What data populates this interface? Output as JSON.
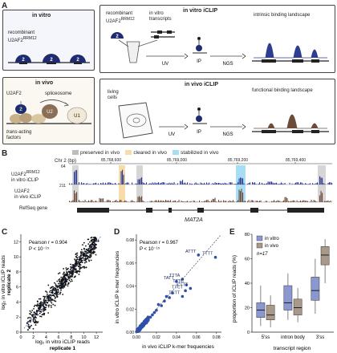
{
  "panel_a": {
    "letter": "A",
    "in_vitro_box_title": "in vitro",
    "recombinant_label_line1": "recombinant",
    "recombinant_label_line2": "U2AF2",
    "rrm_superscript": "RRM12",
    "in_vivo_box_title": "in vivo",
    "u2af2_label": "U2AF2",
    "spliceosome_label": "spliceosome",
    "trans_label": "trans",
    "acting_label": "-acting",
    "factors_label": "factors",
    "u2_label": "U2",
    "u1_label": "U1",
    "protein_number": "2",
    "in_vitro_iclip_title": "in vitro iCLIP",
    "recombinant_top_line1": "recombinant",
    "recombinant_top_line2": "U2AF2",
    "in_vitro_transcripts_line1": "in vitro",
    "in_vitro_transcripts_line2": "transcripts",
    "uv_label": "UV",
    "ip_label": "IP",
    "ngs_label": "NGS",
    "intrinsic_line1": "intrinsic binding landscape",
    "in_vivo_iclip_title": "in vivo iCLIP",
    "living_cells_line1": "living",
    "living_cells_line2": "cells",
    "functional_label": "functional binding landscape"
  },
  "panel_b": {
    "letter": "B",
    "legend": [
      {
        "label": "preserved in vivo",
        "color": "#bdbdbd"
      },
      {
        "label": "cleared in vivo",
        "color": "#f6dcaa"
      },
      {
        "label": "stabilized in vivo",
        "color": "#a8def5"
      }
    ],
    "chr_label": "Chr 2 (bp)",
    "coords": [
      "85,768,600",
      "85,769,000",
      "85,769,200",
      "85,769,400"
    ],
    "track1_label_line1": "U2AF2",
    "track1_sup": "RRM12",
    "track1_label_line2": "in vitro iCLIP",
    "track1_max": "64",
    "track2_label_line1": "U2AF2",
    "track2_label_line2": "in vivo iCLIP",
    "track2_max": "211",
    "refseq_label": "RefSeq gene",
    "gene_name": "MAT2A",
    "colors": {
      "in_vitro": "#2e3d8f",
      "in_vivo": "#6b4c3b"
    }
  },
  "panel_c": {
    "letter": "C",
    "pearson": "Pearson r = 0.904",
    "pvalue": "P < 10⁻¹⁵",
    "xlabel_line1": "log₂ in vitro iCLIP reads",
    "xlabel_line2": "replicate 1",
    "ylabel_line1": "log₂ in vitro iCLIP reads",
    "ylabel_line2": "replicate 2",
    "xticks": [
      "0",
      "2",
      "4",
      "6",
      "8",
      "10",
      "12"
    ],
    "yticks": [
      "0",
      "2",
      "4",
      "6",
      "8",
      "10",
      "12"
    ]
  },
  "panel_d": {
    "letter": "D",
    "pearson": "Pearson r = 0.967",
    "pvalue": "P < 10⁻¹⁵",
    "xlabel": "in vivo iCLIP k-mer frequencies",
    "ylabel": "in vitro iCLIP k-mer frequencies",
    "xticks": [
      "0.00",
      "0.02",
      "0.04",
      "0.06",
      "0.08"
    ],
    "yticks": [
      "0.00",
      "0.02",
      "0.04",
      "0.06",
      "0.08"
    ],
    "point_color": "#2f4fa8"
  },
  "panel_e": {
    "letter": "E",
    "legend": [
      {
        "label": "in vitro",
        "color": "#8a98cf"
      },
      {
        "label": "in vivo",
        "color": "#a8998a"
      }
    ],
    "n_label": "n=17",
    "ylabel": "proportion of iCLIP reads (%)",
    "xlabel": "transcript region",
    "yticks": [
      "0",
      "20",
      "40",
      "60",
      "80"
    ],
    "categories": [
      "5'ss",
      "intron body",
      "3'ss"
    ]
  },
  "chart_data": [
    {
      "type": "scatter",
      "panel": "C",
      "xlabel": "log2 in vitro iCLIP reads replicate 1",
      "ylabel": "log2 in vitro iCLIP reads replicate 2",
      "xlim": [
        0,
        13
      ],
      "ylim": [
        0,
        13
      ],
      "pearson_r": 0.904,
      "x": [
        1,
        1.5,
        2,
        2.3,
        2.6,
        3,
        3.2,
        3.5,
        3.8,
        4,
        4.2,
        4.5,
        4.7,
        5,
        5.2,
        5.4,
        5.6,
        5.8,
        6,
        6.2,
        6.4,
        6.6,
        6.8,
        7,
        7.2,
        7.4,
        7.6,
        7.8,
        8,
        8.2,
        8.4,
        8.6,
        8.8,
        9,
        9.3,
        9.6,
        10,
        10.4,
        10.8,
        11.2,
        11.8,
        12.3
      ],
      "y": [
        1.2,
        1.4,
        2.3,
        2,
        2.8,
        3.1,
        2.7,
        3.6,
        3.9,
        4.2,
        3.9,
        4.6,
        4.5,
        5.3,
        4.9,
        5.6,
        5.3,
        6,
        6.1,
        5.9,
        6.6,
        6.4,
        7,
        7.1,
        6.9,
        7.6,
        7.3,
        8,
        8.1,
        7.9,
        8.6,
        8.4,
        9,
        9.1,
        9.2,
        9.8,
        10.1,
        10.2,
        10.9,
        11,
        11.7,
        12.1
      ]
    },
    {
      "type": "scatter",
      "panel": "D",
      "xlabel": "in vivo iCLIP k-mer frequencies",
      "ylabel": "in vitro iCLIP k-mer frequencies",
      "xlim": [
        0,
        0.085
      ],
      "ylim": [
        0,
        0.085
      ],
      "pearson_r": 0.967,
      "points": [
        {
          "x": 0.062,
          "y": 0.067,
          "label": "ATTT"
        },
        {
          "x": 0.079,
          "y": 0.065,
          "label": "TTTT"
        },
        {
          "x": 0.04,
          "y": 0.044,
          "label": "TATT"
        },
        {
          "x": 0.046,
          "y": 0.046,
          "label": "TTTA"
        },
        {
          "x": 0.05,
          "y": 0.041,
          "label": "TTTC"
        },
        {
          "x": 0.054,
          "y": 0.038,
          "label": "CTTT"
        },
        {
          "x": 0.049,
          "y": 0.036,
          "label": "TTCT"
        },
        {
          "x": 0.046,
          "y": 0.031,
          "label": "TCTT"
        },
        {
          "x": 0.004,
          "y": 0.003,
          "label": ""
        },
        {
          "x": 0.006,
          "y": 0.005,
          "label": ""
        },
        {
          "x": 0.008,
          "y": 0.007,
          "label": ""
        },
        {
          "x": 0.01,
          "y": 0.008,
          "label": ""
        },
        {
          "x": 0.012,
          "y": 0.011,
          "label": ""
        },
        {
          "x": 0.014,
          "y": 0.013,
          "label": ""
        },
        {
          "x": 0.016,
          "y": 0.015,
          "label": ""
        },
        {
          "x": 0.018,
          "y": 0.017,
          "label": ""
        },
        {
          "x": 0.02,
          "y": 0.019,
          "label": ""
        },
        {
          "x": 0.022,
          "y": 0.024,
          "label": ""
        },
        {
          "x": 0.025,
          "y": 0.023,
          "label": ""
        },
        {
          "x": 0.028,
          "y": 0.027,
          "label": ""
        },
        {
          "x": 0.03,
          "y": 0.031,
          "label": ""
        },
        {
          "x": 0.033,
          "y": 0.03,
          "label": ""
        },
        {
          "x": 0.036,
          "y": 0.034,
          "label": ""
        }
      ]
    },
    {
      "type": "box",
      "panel": "E",
      "xlabel": "transcript region",
      "ylabel": "proportion of iCLIP reads (%)",
      "ylim": [
        0,
        80
      ],
      "categories": [
        "5'ss",
        "intron body",
        "3'ss"
      ],
      "series": [
        {
          "name": "in vitro",
          "boxes": [
            {
              "min": 5,
              "q1": 12,
              "median": 18,
              "q3": 24,
              "max": 38
            },
            {
              "min": 10,
              "q1": 18,
              "median": 24,
              "q3": 38,
              "max": 48
            },
            {
              "min": 15,
              "q1": 26,
              "median": 34,
              "q3": 45,
              "max": 60
            }
          ]
        },
        {
          "name": "in vivo",
          "boxes": [
            {
              "min": 4,
              "q1": 10,
              "median": 14,
              "q3": 22,
              "max": 30
            },
            {
              "min": 8,
              "q1": 14,
              "median": 20,
              "q3": 27,
              "max": 36
            },
            {
              "min": 40,
              "q1": 55,
              "median": 63,
              "q3": 70,
              "max": 76
            }
          ]
        }
      ]
    }
  ]
}
